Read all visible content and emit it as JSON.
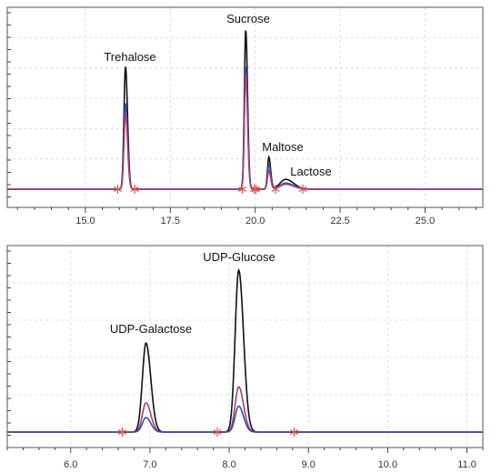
{
  "chart_data": [
    {
      "type": "line",
      "chart_kind": "chromatogram",
      "xlabel": "",
      "ylabel": "",
      "xlim": [
        12.7,
        26.7
      ],
      "x_ticks": [
        "15.0",
        "17.5",
        "20.0",
        "22.5",
        "25.0"
      ],
      "x_tick_values": [
        15.0,
        17.5,
        20.0,
        22.5,
        25.0
      ],
      "grid": true,
      "peak_labels": [
        {
          "name": "Trehalose",
          "x": 16.2
        },
        {
          "name": "Sucrose",
          "x": 19.7
        },
        {
          "name": "Maltose",
          "x": 20.4
        },
        {
          "name": "Lactose",
          "x": 20.9
        }
      ],
      "series": [
        {
          "color": "#111111",
          "peaks": [
            {
              "x": 16.18,
              "height": 1.0,
              "width": 0.045
            },
            {
              "x": 19.72,
              "height": 1.3,
              "width": 0.04
            },
            {
              "x": 20.4,
              "height": 0.26,
              "width": 0.04
            },
            {
              "x": 20.9,
              "height": 0.08,
              "width": 0.17
            }
          ]
        },
        {
          "color": "#3a4fa0",
          "peaks": [
            {
              "x": 16.18,
              "height": 0.7,
              "width": 0.045
            },
            {
              "x": 19.72,
              "height": 1.0,
              "width": 0.04
            },
            {
              "x": 20.4,
              "height": 0.2,
              "width": 0.04
            },
            {
              "x": 20.9,
              "height": 0.05,
              "width": 0.17
            }
          ]
        },
        {
          "color": "#a0407a",
          "peaks": [
            {
              "x": 16.18,
              "height": 0.62,
              "width": 0.045
            },
            {
              "x": 19.72,
              "height": 0.95,
              "width": 0.04
            },
            {
              "x": 20.4,
              "height": 0.15,
              "width": 0.04
            },
            {
              "x": 20.9,
              "height": 0.04,
              "width": 0.17
            }
          ]
        }
      ],
      "integration_markers": [
        15.95,
        16.45,
        19.62,
        19.97,
        20.02,
        20.6,
        21.4
      ],
      "marker_color": "#e05050"
    },
    {
      "type": "line",
      "chart_kind": "chromatogram",
      "xlabel": "",
      "ylabel": "",
      "xlim": [
        5.2,
        11.2
      ],
      "x_ticks": [
        "6.0",
        "7.0",
        "8.0",
        "9.0",
        "10.0",
        "11.0"
      ],
      "x_tick_values": [
        6.0,
        7.0,
        8.0,
        9.0,
        10.0,
        11.0
      ],
      "grid": true,
      "peak_labels": [
        {
          "name": "UDP-Galactose",
          "x": 6.95
        },
        {
          "name": "UDP-Glucose",
          "x": 8.12
        }
      ],
      "series": [
        {
          "color": "#111111",
          "peaks": [
            {
              "x": 6.95,
              "height": 0.55,
              "width": 0.045
            },
            {
              "x": 8.12,
              "height": 1.0,
              "width": 0.045
            }
          ]
        },
        {
          "color": "#a0407a",
          "peaks": [
            {
              "x": 6.95,
              "height": 0.18,
              "width": 0.045
            },
            {
              "x": 8.12,
              "height": 0.28,
              "width": 0.045
            }
          ]
        },
        {
          "color": "#3a4fa0",
          "peaks": [
            {
              "x": 6.95,
              "height": 0.09,
              "width": 0.045
            },
            {
              "x": 8.12,
              "height": 0.16,
              "width": 0.045
            }
          ]
        }
      ],
      "integration_markers": [
        6.65,
        7.85,
        8.82
      ],
      "marker_color": "#e05050"
    }
  ]
}
